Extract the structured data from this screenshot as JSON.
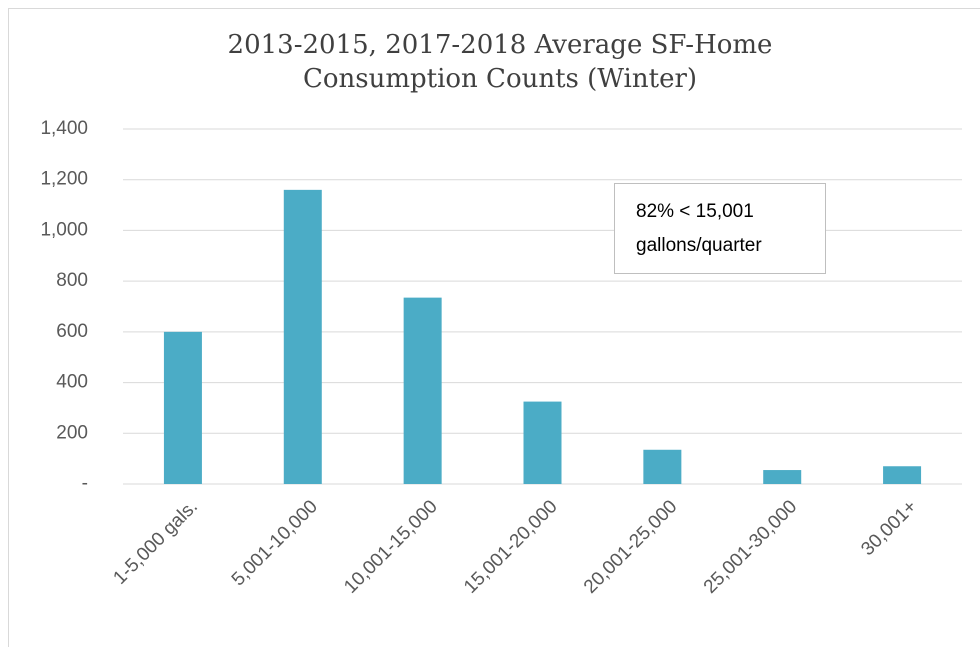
{
  "chart_data": {
    "type": "bar",
    "title": [
      "2013-2015, 2017-2018 Average SF-Home",
      "Consumption Counts (Winter)"
    ],
    "categories": [
      "1-5,000 gals.",
      "5,001-10,000",
      "10,001-15,000",
      "15,001-20,000",
      "20,001-25,000",
      "25,001-30,000",
      "30,001+"
    ],
    "values": [
      600,
      1160,
      735,
      325,
      135,
      55,
      70
    ],
    "color": "#4bacc6",
    "ylim": [
      0,
      1400
    ],
    "yticks": [
      {
        "value": 0,
        "label": "-"
      },
      {
        "value": 200,
        "label": "200"
      },
      {
        "value": 400,
        "label": "400"
      },
      {
        "value": 600,
        "label": "600"
      },
      {
        "value": 800,
        "label": "800"
      },
      {
        "value": 1000,
        "label": "1,000"
      },
      {
        "value": 1200,
        "label": "1,200"
      },
      {
        "value": 1400,
        "label": "1,400"
      }
    ],
    "grid": true,
    "annotation": [
      "82% < 15,001",
      "gallons/quarter"
    ]
  }
}
